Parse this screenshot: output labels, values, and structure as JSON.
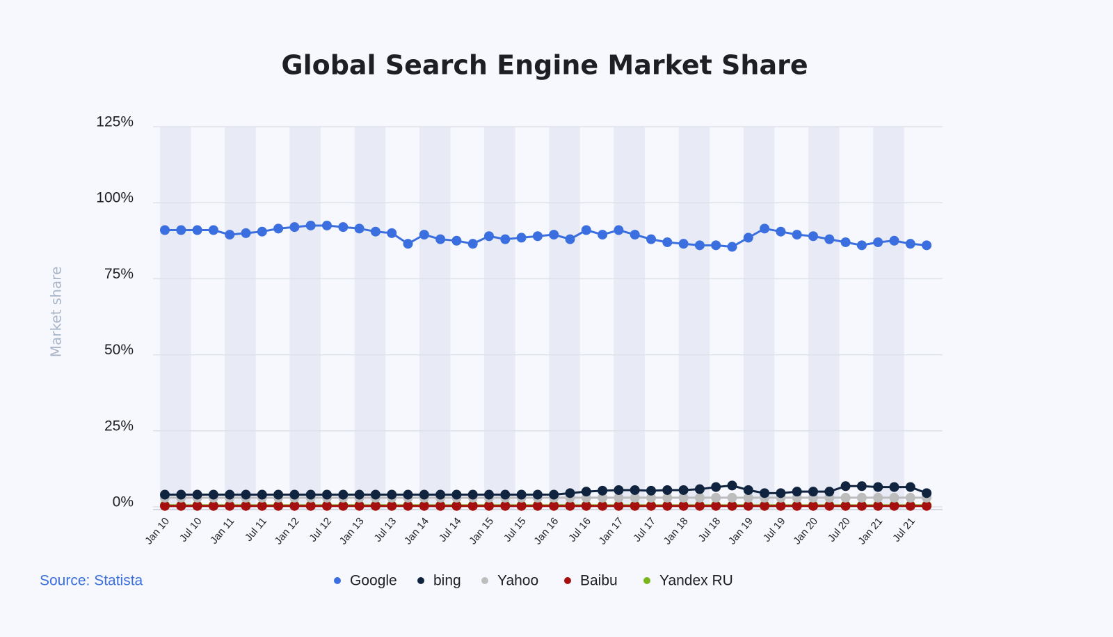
{
  "chart_data": {
    "type": "line",
    "title": "Global Search Engine Market Share",
    "y_label": "Market share",
    "source": "Source: Statista",
    "categories": [
      "Jan 10",
      null,
      "Jul 10",
      null,
      "Jan 11",
      null,
      "Jul 11",
      null,
      "Jan 12",
      null,
      "Jul 12",
      null,
      "Jan 13",
      null,
      "Jul 13",
      null,
      "Jan 14",
      null,
      "Jul 14",
      null,
      "Jan 15",
      null,
      "Jul 15",
      null,
      "Jan 16",
      null,
      "Jul 16",
      null,
      "Jan 17",
      null,
      "Jul 17",
      null,
      "Jan 18",
      null,
      "Jul 18",
      null,
      "Jan 19",
      null,
      "Jul 19",
      null,
      "Jan 20",
      null,
      "Jul 20",
      null,
      "Jan 21",
      null,
      "Jul 21",
      null
    ],
    "series": [
      {
        "name": "Google",
        "color": "#3b6fe0",
        "values": [
          91,
          91,
          91,
          91,
          89.5,
          90,
          90.5,
          91.5,
          92,
          92.5,
          92.5,
          92,
          91.5,
          90.5,
          90,
          86.5,
          89.5,
          88,
          87.5,
          86.5,
          89,
          88,
          88.5,
          89,
          89.5,
          88,
          91,
          89.5,
          91,
          89.5,
          88,
          87,
          86.5,
          86,
          86,
          85.5,
          88.5,
          91.5,
          90.5,
          89.5,
          89,
          88,
          87,
          86,
          87,
          87.5,
          86.5,
          86
        ]
      },
      {
        "name": "bing",
        "color": "#10233f",
        "values": [
          4,
          4,
          4,
          4,
          4,
          4,
          4,
          4,
          4,
          4,
          4,
          4,
          4,
          4,
          4,
          4,
          4,
          4,
          4,
          4,
          4,
          4,
          4,
          4,
          4,
          4.5,
          5,
          5.3,
          5.5,
          5.5,
          5.3,
          5.5,
          5.5,
          5.8,
          6.5,
          7,
          5.5,
          4.5,
          4.5,
          5,
          5,
          5,
          6.8,
          6.8,
          6.5,
          6.5,
          6.5,
          4.5
        ]
      },
      {
        "name": "Yahoo",
        "color": "#bdbdbd",
        "values": [
          3,
          3,
          3,
          3,
          3,
          3,
          3,
          3,
          3,
          3,
          3,
          3,
          3,
          3,
          3,
          3,
          3,
          3,
          3,
          3,
          3,
          3,
          3,
          3,
          3,
          3,
          3,
          3,
          3,
          3,
          3,
          3,
          3,
          3,
          3,
          3,
          3,
          3,
          3,
          3,
          3,
          3,
          3,
          3,
          3,
          3,
          3,
          3
        ]
      },
      {
        "name": "Baibu",
        "color": "#a50f0f",
        "values": [
          0.3,
          0.3,
          0.3,
          0.3,
          0.3,
          0.3,
          0.3,
          0.3,
          0.3,
          0.3,
          0.3,
          0.3,
          0.3,
          0.3,
          0.3,
          0.3,
          0.3,
          0.3,
          0.3,
          0.3,
          0.3,
          0.3,
          0.3,
          0.3,
          0.3,
          0.3,
          0.3,
          0.3,
          0.3,
          0.3,
          0.3,
          0.3,
          0.3,
          0.3,
          0.3,
          0.3,
          0.3,
          0.3,
          0.3,
          0.3,
          0.3,
          0.3,
          0.3,
          0.3,
          0.3,
          0.3,
          0.3,
          0.3
        ]
      },
      {
        "name": "Yandex RU",
        "color": "#7ab51d",
        "values": [
          0.5,
          0.5,
          0.5,
          0.5,
          0.5,
          0.5,
          0.5,
          0.5,
          0.5,
          0.5,
          0.5,
          0.5,
          0.5,
          0.5,
          0.5,
          0.5,
          0.5,
          0.5,
          0.5,
          0.5,
          0.5,
          0.5,
          0.5,
          0.5,
          0.5,
          0.5,
          0.5,
          0.5,
          0.5,
          0.5,
          0.5,
          0.5,
          0.5,
          0.5,
          0.5,
          0.5,
          0.5,
          0.5,
          0.5,
          0.5,
          0.5,
          0.5,
          0.5,
          0.5,
          0.5,
          0.5,
          0.5,
          0.5
        ]
      }
    ],
    "ylim": [
      0,
      125
    ],
    "yticks": [
      {
        "value": 0,
        "label": "0%"
      },
      {
        "value": 25,
        "label": "25%"
      },
      {
        "value": 50,
        "label": "50%"
      },
      {
        "value": 75,
        "label": "75%"
      },
      {
        "value": 100,
        "label": "100%"
      },
      {
        "value": 125,
        "label": "125%"
      }
    ],
    "grid": true,
    "legend": "bottom"
  }
}
